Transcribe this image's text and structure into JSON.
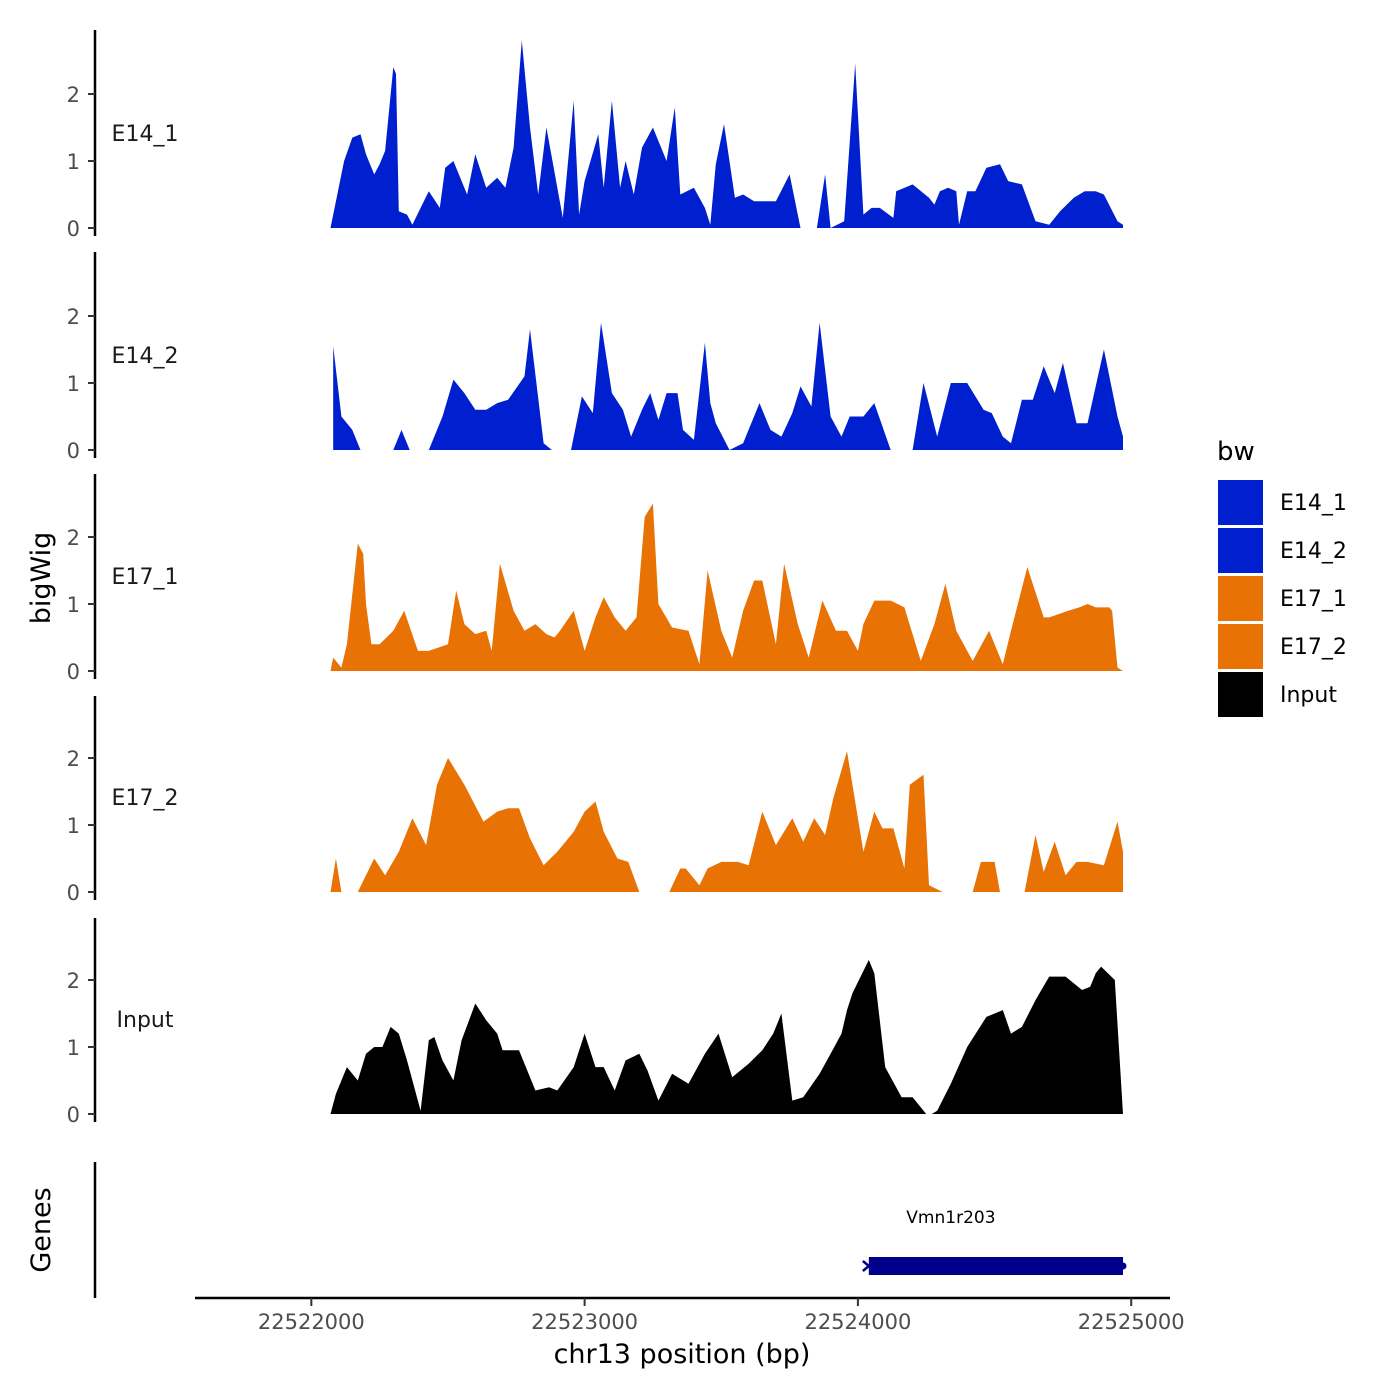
{
  "chart_data": {
    "type": "area",
    "ylabel": "bigWig",
    "xlabel": "chr13 position (bp)",
    "gene_track_label": "Genes",
    "xlim": [
      22521750,
      22524970
    ],
    "ylim": [
      0,
      2.9
    ],
    "x_ticks": [
      22522000,
      22523000,
      22524000,
      22525000
    ],
    "x_tick_labels": [
      "22522000",
      "22523000",
      "22524000",
      "22525000"
    ],
    "y_ticks": [
      0,
      1,
      2
    ],
    "y_tick_labels": [
      "0",
      "1",
      "2"
    ],
    "legend": {
      "title": "bw",
      "position": "right",
      "entries": [
        {
          "label": "E14_1",
          "color": "#0020D0"
        },
        {
          "label": "E14_2",
          "color": "#0020D0"
        },
        {
          "label": "E17_1",
          "color": "#E87204"
        },
        {
          "label": "E17_2",
          "color": "#E87204"
        },
        {
          "label": "Input",
          "color": "#000000"
        }
      ]
    },
    "series": [
      {
        "name": "E14_1",
        "color": "#0020D0",
        "x": [
          22522070,
          22522120,
          22522150,
          22522180,
          22522200,
          22522230,
          22522250,
          22522270,
          22522300,
          22522310,
          22522320,
          22522350,
          22522370,
          22522400,
          22522430,
          22522470,
          22522490,
          22522520,
          22522570,
          22522600,
          22522640,
          22522680,
          22522710,
          22522740,
          22522770,
          22522800,
          22522830,
          22522860,
          22522920,
          22522960,
          22522980,
          22523000,
          22523050,
          22523070,
          22523100,
          22523130,
          22523150,
          22523180,
          22523210,
          22523250,
          22523300,
          22523330,
          22523350,
          22523400,
          22523440,
          22523460,
          22523480,
          22523510,
          22523550,
          22523580,
          22523620,
          22523660,
          22523700,
          22523750,
          22523790,
          22523820,
          22523850,
          22523880,
          22523900,
          22523950,
          22523990,
          22524020,
          22524050,
          22524080,
          22524130,
          22524140,
          22524200,
          22524260,
          22524280,
          22524300,
          22524330,
          22524360,
          22524370,
          22524400,
          22524430,
          22524470,
          22524520,
          22524550,
          22524600,
          22524650,
          22524700,
          22524740,
          22524790,
          22524830,
          22524870,
          22524900,
          22524950,
          22524970
        ],
        "values": [
          0,
          1,
          1.35,
          1.4,
          1.1,
          0.8,
          0.95,
          1.15,
          2.4,
          2.3,
          0.25,
          0.2,
          0.05,
          0.3,
          0.55,
          0.3,
          0.9,
          1,
          0.5,
          1.1,
          0.6,
          0.75,
          0.6,
          1.2,
          2.8,
          1.5,
          0.5,
          1.5,
          0.15,
          1.9,
          0.2,
          0.7,
          1.4,
          0.6,
          1.9,
          0.6,
          1,
          0.5,
          1.2,
          1.5,
          1,
          1.8,
          0.5,
          0.6,
          0.3,
          0.05,
          0.95,
          1.55,
          0.45,
          0.5,
          0.4,
          0.4,
          0.4,
          0.8,
          0,
          null,
          0,
          0.8,
          0,
          0.1,
          2.45,
          0.2,
          0.3,
          0.3,
          0.15,
          0.55,
          0.65,
          0.45,
          0.35,
          0.55,
          0.6,
          0.55,
          0.05,
          0.55,
          0.55,
          0.9,
          0.95,
          0.7,
          0.65,
          0.1,
          0.05,
          0.25,
          0.45,
          0.55,
          0.55,
          0.5,
          0.1,
          0.05
        ]
      },
      {
        "name": "E14_2",
        "color": "#0020D0",
        "x": [
          22522080,
          22522110,
          22522150,
          22522180,
          22522260,
          22522300,
          22522330,
          22522360,
          22522400,
          22522430,
          22522480,
          22522520,
          22522560,
          22522600,
          22522640,
          22522680,
          22522720,
          22522780,
          22522800,
          22522850,
          22522880,
          22522920,
          22522950,
          22522990,
          22523030,
          22523060,
          22523100,
          22523140,
          22523170,
          22523210,
          22523240,
          22523270,
          22523300,
          22523340,
          22523360,
          22523400,
          22523440,
          22523460,
          22523480,
          22523530,
          22523580,
          22523640,
          22523680,
          22523720,
          22523760,
          22523790,
          22523830,
          22523860,
          22523900,
          22523940,
          22523970,
          22524020,
          22524060,
          22524120,
          22524160,
          22524200,
          22524240,
          22524290,
          22524340,
          22524400,
          22524460,
          22524490,
          22524530,
          22524560,
          22524600,
          22524640,
          22524680,
          22524720,
          22524750,
          22524800,
          22524840,
          22524900,
          22524950,
          22524970
        ],
        "values": [
          1.55,
          0.5,
          0.3,
          0,
          null,
          0,
          0.3,
          0,
          null,
          0,
          0.5,
          1.05,
          0.85,
          0.6,
          0.6,
          0.7,
          0.75,
          1.1,
          1.8,
          0.1,
          0,
          null,
          0,
          0.8,
          0.55,
          1.9,
          0.85,
          0.6,
          0.2,
          0.6,
          0.85,
          0.45,
          0.85,
          0.85,
          0.3,
          0.15,
          1.6,
          0.7,
          0.4,
          0,
          0.1,
          0.7,
          0.3,
          0.2,
          0.55,
          0.95,
          0.65,
          1.9,
          0.5,
          0.2,
          0.5,
          0.5,
          0.7,
          0,
          null,
          0,
          1,
          0.2,
          1,
          1,
          0.6,
          0.55,
          0.2,
          0.1,
          0.75,
          0.75,
          1.25,
          0.85,
          1.3,
          0.4,
          0.4,
          1.5,
          0.5,
          0.2
        ]
      },
      {
        "name": "E17_1",
        "color": "#E87204",
        "x": [
          22522070,
          22522080,
          22522110,
          22522130,
          22522170,
          22522190,
          22522200,
          22522220,
          22522250,
          22522300,
          22522340,
          22522390,
          22522430,
          22522500,
          22522530,
          22522560,
          22522600,
          22522640,
          22522660,
          22522690,
          22522740,
          22522780,
          22522820,
          22522860,
          22522890,
          22522910,
          22522960,
          22523000,
          22523040,
          22523070,
          22523110,
          22523150,
          22523190,
          22523220,
          22523250,
          22523270,
          22523320,
          22523380,
          22523420,
          22523450,
          22523500,
          22523540,
          22523580,
          22523620,
          22523650,
          22523700,
          22523730,
          22523780,
          22523820,
          22523870,
          22523920,
          22523960,
          22524000,
          22524020,
          22524060,
          22524120,
          22524170,
          22524230,
          22524280,
          22524320,
          22524360,
          22524420,
          22524480,
          22524530,
          22524560,
          22524620,
          22524680,
          22524700,
          22524770,
          22524810,
          22524840,
          22524870,
          22524900,
          22524920,
          22524930,
          22524950,
          22524970
        ],
        "values": [
          0,
          0.2,
          0.05,
          0.4,
          1.9,
          1.75,
          1,
          0.4,
          0.4,
          0.6,
          0.9,
          0.3,
          0.3,
          0.4,
          1.2,
          0.7,
          0.55,
          0.6,
          0.3,
          1.6,
          0.9,
          0.6,
          0.7,
          0.55,
          0.5,
          0.6,
          0.9,
          0.3,
          0.8,
          1.1,
          0.8,
          0.6,
          0.8,
          2.3,
          2.5,
          1.0,
          0.65,
          0.6,
          0.1,
          1.5,
          0.6,
          0.2,
          0.9,
          1.35,
          1.35,
          0.4,
          1.6,
          0.7,
          0.2,
          1.05,
          0.6,
          0.6,
          0.3,
          0.7,
          1.05,
          1.05,
          0.95,
          0.15,
          0.7,
          1.3,
          0.6,
          0.15,
          0.6,
          0.1,
          0.6,
          1.55,
          0.8,
          0.8,
          0.9,
          0.95,
          1.0,
          0.95,
          0.95,
          0.95,
          0.9,
          0.05,
          0
        ]
      },
      {
        "name": "E17_2",
        "color": "#E87204",
        "x": [
          22522070,
          22522090,
          22522110,
          22522130,
          22522170,
          22522230,
          22522270,
          22522320,
          22522370,
          22522420,
          22522460,
          22522500,
          22522560,
          22522630,
          22522680,
          22522720,
          22522760,
          22522800,
          22522850,
          22522900,
          22522960,
          22523000,
          22523040,
          22523070,
          22523120,
          22523160,
          22523200,
          22523260,
          22523310,
          22523350,
          22523370,
          22523420,
          22523450,
          22523500,
          22523560,
          22523600,
          22523650,
          22523700,
          22523760,
          22523800,
          22523840,
          22523880,
          22523910,
          22523960,
          22524020,
          22524060,
          22524090,
          22524130,
          22524170,
          22524190,
          22524240,
          22524260,
          22524310,
          22524360,
          22524420,
          22524450,
          22524500,
          22524520,
          22524570,
          22524610,
          22524650,
          22524680,
          22524720,
          22524760,
          22524800,
          22524840,
          22524900,
          22524950,
          22524970
        ],
        "values": [
          0,
          0.5,
          0,
          null,
          0,
          0.5,
          0.25,
          0.6,
          1.1,
          0.7,
          1.6,
          2.0,
          1.6,
          1.05,
          1.2,
          1.25,
          1.25,
          0.8,
          0.4,
          0.6,
          0.9,
          1.2,
          1.35,
          0.9,
          0.5,
          0.45,
          0,
          null,
          0,
          0.35,
          0.35,
          0.1,
          0.35,
          0.45,
          0.45,
          0.4,
          1.2,
          0.7,
          1.1,
          0.75,
          1.1,
          0.85,
          1.4,
          2.1,
          0.6,
          1.2,
          0.95,
          0.95,
          0.35,
          1.6,
          1.75,
          0.1,
          0,
          null,
          0,
          0.45,
          0.45,
          0,
          null,
          0,
          0.85,
          0.3,
          0.75,
          0.25,
          0.45,
          0.45,
          0.4,
          1.05,
          0.6
        ]
      },
      {
        "name": "Input",
        "color": "#000000",
        "x": [
          22522070,
          22522090,
          22522130,
          22522170,
          22522200,
          22522230,
          22522260,
          22522290,
          22522320,
          22522350,
          22522400,
          22522430,
          22522450,
          22522480,
          22522520,
          22522550,
          22522600,
          22522640,
          22522680,
          22522700,
          22522760,
          22522820,
          22522870,
          22522900,
          22522960,
          22523000,
          22523040,
          22523070,
          22523110,
          22523150,
          22523200,
          22523230,
          22523270,
          22523320,
          22523380,
          22523440,
          22523490,
          22523540,
          22523600,
          22523650,
          22523690,
          22523720,
          22523760,
          22523800,
          22523860,
          22523900,
          22523940,
          22523960,
          22523980,
          22524040,
          22524060,
          22524100,
          22524160,
          22524200,
          22524250,
          22524270,
          22524290,
          22524340,
          22524400,
          22524470,
          22524530,
          22524560,
          22524600,
          22524650,
          22524700,
          22524760,
          22524820,
          22524850,
          22524870,
          22524890,
          22524940,
          22524970
        ],
        "values": [
          0,
          0.3,
          0.7,
          0.5,
          0.9,
          1.0,
          1.0,
          1.3,
          1.2,
          0.8,
          0.05,
          1.1,
          1.15,
          0.8,
          0.5,
          1.1,
          1.65,
          1.4,
          1.2,
          0.95,
          0.95,
          0.35,
          0.4,
          0.35,
          0.7,
          1.2,
          0.7,
          0.7,
          0.35,
          0.8,
          0.9,
          0.65,
          0.2,
          0.6,
          0.45,
          0.9,
          1.2,
          0.55,
          0.75,
          0.95,
          1.2,
          1.5,
          0.2,
          0.25,
          0.6,
          0.9,
          1.2,
          1.55,
          1.8,
          2.3,
          2.1,
          0.7,
          0.25,
          0.25,
          0,
          0,
          0.05,
          0.45,
          1.0,
          1.45,
          1.55,
          1.2,
          1.3,
          1.7,
          2.05,
          2.05,
          1.85,
          1.9,
          2.1,
          2.2,
          2.0,
          0
        ]
      }
    ],
    "genes": [
      {
        "name": "Vmn1r203",
        "start": 22524040,
        "end": 22524970,
        "strand": "-",
        "color": "#00008B"
      }
    ]
  }
}
